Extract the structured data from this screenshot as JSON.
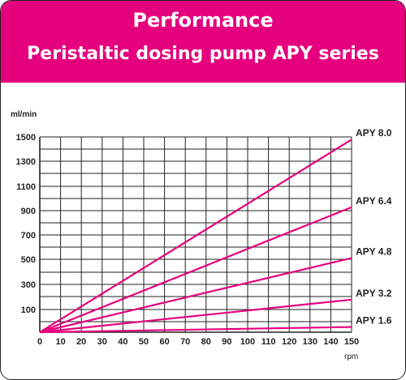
{
  "header": {
    "title": "Performance",
    "subtitle": "Peristaltic dosing pump APY series"
  },
  "colors": {
    "accent": "#e5007e",
    "grid": "#222222",
    "text": "#222222"
  },
  "chart_data": {
    "type": "line",
    "title": "Performance",
    "subtitle": "Peristaltic dosing pump APY series",
    "xlabel": "rpm",
    "ylabel": "ml/min",
    "x_ticks": [
      "0",
      "10",
      "20",
      "30",
      "40",
      "50",
      "60",
      "70",
      "80",
      "90",
      "100",
      "110",
      "120",
      "130",
      "140",
      "150"
    ],
    "y_ticks": [
      "100",
      "300",
      "500",
      "700",
      "900",
      "1100",
      "1300",
      "1500"
    ],
    "grid": true,
    "legend": "end-of-line labels",
    "series": [
      {
        "name": "APY 8.0",
        "x": [
          0,
          150
        ],
        "y": [
          0,
          1480
        ]
      },
      {
        "name": "APY 6.4",
        "x": [
          0,
          150
        ],
        "y": [
          0,
          960
        ]
      },
      {
        "name": "APY 4.8",
        "x": [
          0,
          150
        ],
        "y": [
          0,
          570
        ]
      },
      {
        "name": "APY 3.2",
        "x": [
          0,
          150
        ],
        "y": [
          0,
          250
        ]
      },
      {
        "name": "APY 1.6",
        "x": [
          0,
          150
        ],
        "y": [
          0,
          40
        ]
      }
    ]
  }
}
